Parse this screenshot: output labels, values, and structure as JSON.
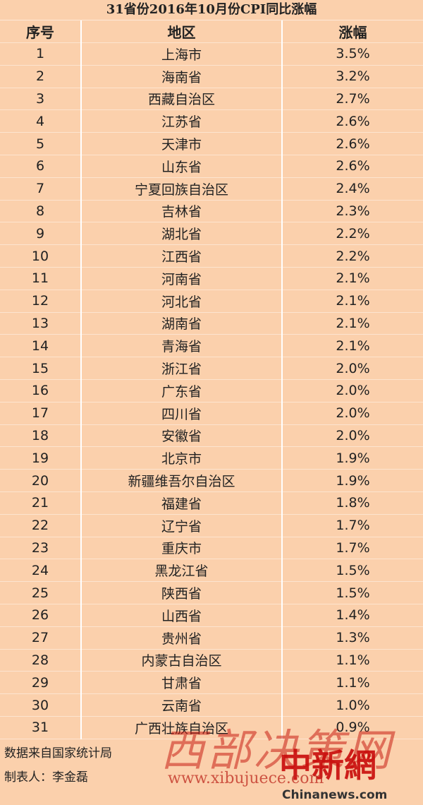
{
  "title": "31省份2016年10月份CPI同比涨幅",
  "table": {
    "header": [
      "序号",
      "地区",
      "涨幅"
    ],
    "rows": [
      [
        "1",
        "上海市",
        "3.5%"
      ],
      [
        "2",
        "海南省",
        "3.2%"
      ],
      [
        "3",
        "西藏自治区",
        "2.7%"
      ],
      [
        "4",
        "江苏省",
        "2.6%"
      ],
      [
        "5",
        "天津市",
        "2.6%"
      ],
      [
        "6",
        "山东省",
        "2.6%"
      ],
      [
        "7",
        "宁夏回族自治区",
        "2.4%"
      ],
      [
        "8",
        "吉林省",
        "2.3%"
      ],
      [
        "9",
        "湖北省",
        "2.2%"
      ],
      [
        "10",
        "江西省",
        "2.2%"
      ],
      [
        "11",
        "河南省",
        "2.1%"
      ],
      [
        "12",
        "河北省",
        "2.1%"
      ],
      [
        "13",
        "湖南省",
        "2.1%"
      ],
      [
        "14",
        "青海省",
        "2.1%"
      ],
      [
        "15",
        "浙江省",
        "2.0%"
      ],
      [
        "16",
        "广东省",
        "2.0%"
      ],
      [
        "17",
        "四川省",
        "2.0%"
      ],
      [
        "18",
        "安徽省",
        "2.0%"
      ],
      [
        "19",
        "北京市",
        "1.9%"
      ],
      [
        "20",
        "新疆维吾尔自治区",
        "1.9%"
      ],
      [
        "21",
        "福建省",
        "1.8%"
      ],
      [
        "22",
        "辽宁省",
        "1.7%"
      ],
      [
        "23",
        "重庆市",
        "1.7%"
      ],
      [
        "24",
        "黑龙江省",
        "1.5%"
      ],
      [
        "25",
        "陕西省",
        "1.5%"
      ],
      [
        "26",
        "山西省",
        "1.4%"
      ],
      [
        "27",
        "贵州省",
        "1.3%"
      ],
      [
        "28",
        "内蒙古自治区",
        "1.1%"
      ],
      [
        "29",
        "甘肃省",
        "1.1%"
      ],
      [
        "30",
        "云南省",
        "1.0%"
      ],
      [
        "31",
        "广西壮族自治区",
        "0.9%"
      ]
    ]
  },
  "footer": {
    "source": "数据来自国家统计局",
    "author": "制表人：李金磊"
  },
  "watermarks": {
    "site": "西部决策网",
    "url": "www.xibujuece.com",
    "brand": "中新網",
    "brand_url": "Chinanews.com"
  }
}
